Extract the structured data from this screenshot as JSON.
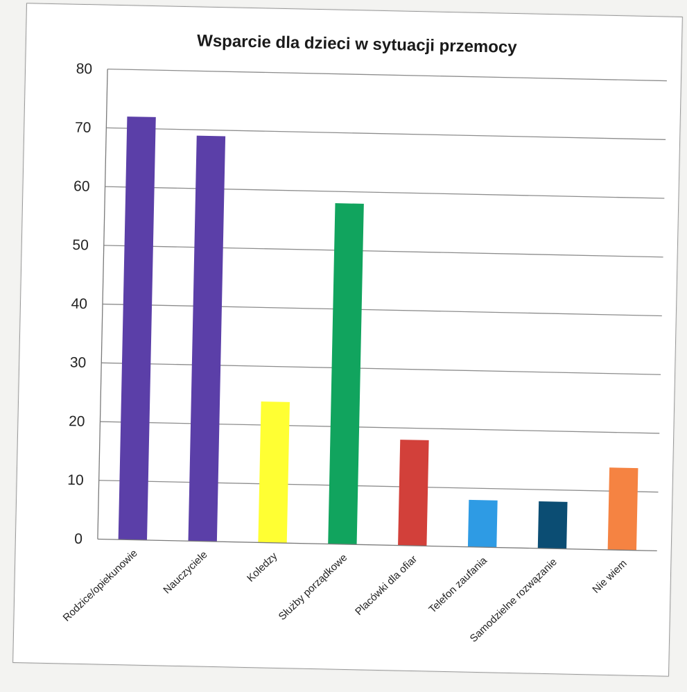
{
  "chart_data": {
    "type": "bar",
    "title": "Wsparcie dla dzieci w sytuacji przemocy",
    "xlabel": "",
    "ylabel": "",
    "categories": [
      "Rodzice/opiekunowie",
      "Nauczyciele",
      "Koledzy",
      "Służby porządkowe",
      "Placówki dla ofiar",
      "Telefon zaufania",
      "Samodzielne rozwązanie",
      "Nie wiem"
    ],
    "values": [
      72,
      69,
      24,
      58,
      18,
      8,
      8,
      14
    ],
    "colors": [
      "#5b3fa8",
      "#5b3fa8",
      "#ffff33",
      "#11a45e",
      "#d2403a",
      "#2e9be4",
      "#0b4d73",
      "#f58342"
    ],
    "ylim": [
      0,
      80
    ],
    "yticks": [
      "0",
      "10",
      "20",
      "30",
      "40",
      "50",
      "60",
      "70",
      "80"
    ],
    "grid": true,
    "legend": "none"
  }
}
